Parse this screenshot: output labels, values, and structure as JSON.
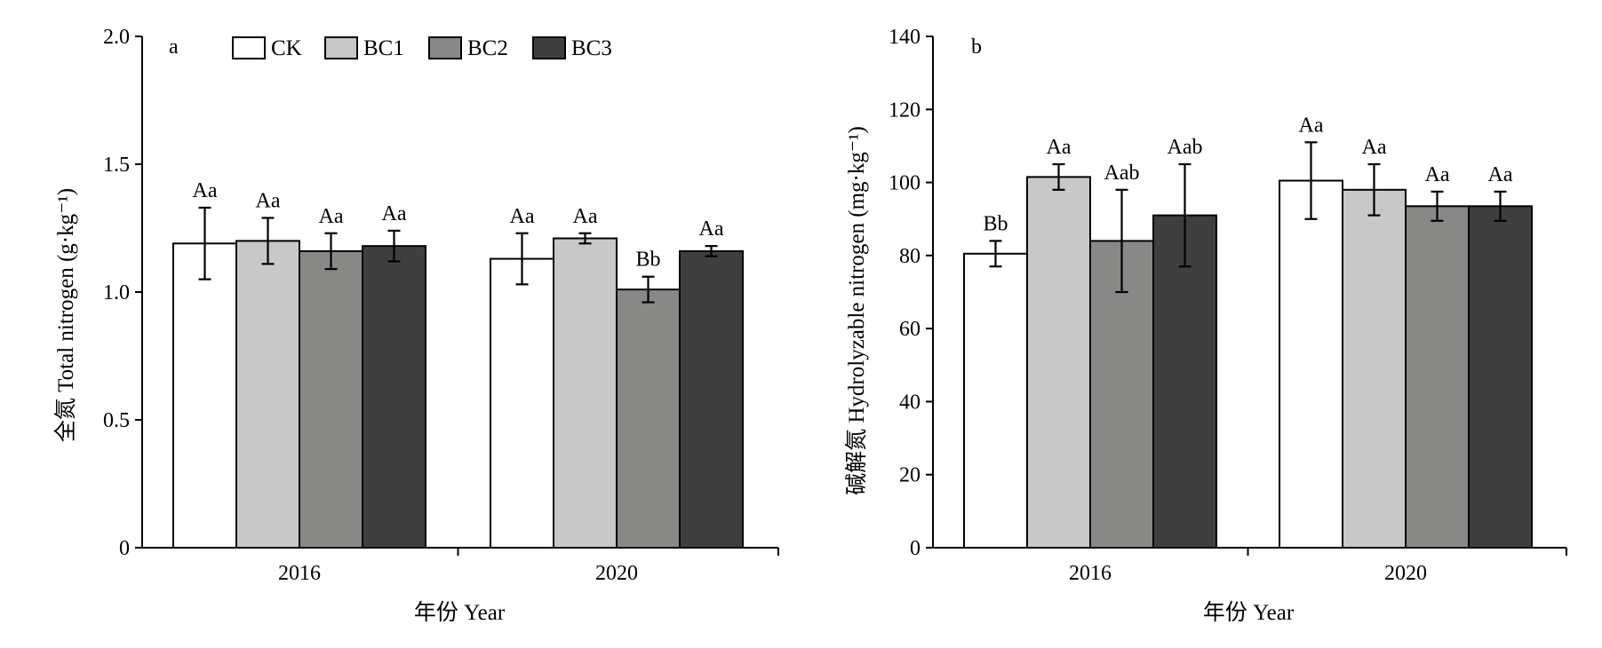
{
  "legend": [
    "CK",
    "BC1",
    "BC2",
    "BC3"
  ],
  "colors": {
    "CK": "#ffffff",
    "BC1": "#c8c8c8",
    "BC2": "#888886",
    "BC3": "#3f3f3f"
  },
  "chart_data": [
    {
      "type": "bar",
      "panel": "a",
      "categories": [
        "2016",
        "2020"
      ],
      "xlabel": "年份 Year",
      "ylabel": "全氮 Total nitrogen (g·kg⁻¹)",
      "ylim": [
        0,
        2.0
      ],
      "yticks": [
        "0",
        "0.5",
        "1.0",
        "1.5",
        "2.0"
      ],
      "ytick_values": [
        0,
        0.5,
        1.0,
        1.5,
        2.0
      ],
      "series": [
        {
          "name": "CK",
          "values": [
            1.19,
            1.13
          ],
          "errors": [
            0.14,
            0.1
          ],
          "labels": [
            "Aa",
            "Aa"
          ]
        },
        {
          "name": "BC1",
          "values": [
            1.2,
            1.21
          ],
          "errors": [
            0.09,
            0.02
          ],
          "labels": [
            "Aa",
            "Aa"
          ]
        },
        {
          "name": "BC2",
          "values": [
            1.16,
            1.01
          ],
          "errors": [
            0.07,
            0.05
          ],
          "labels": [
            "Aa",
            "Bb"
          ]
        },
        {
          "name": "BC3",
          "values": [
            1.18,
            1.16
          ],
          "errors": [
            0.06,
            0.02
          ],
          "labels": [
            "Aa",
            "Aa"
          ]
        }
      ]
    },
    {
      "type": "bar",
      "panel": "b",
      "categories": [
        "2016",
        "2020"
      ],
      "xlabel": "年份 Year",
      "ylabel": "碱解氮 Hydrolyzable nitrogen (mg·kg⁻¹)",
      "ylim": [
        0,
        140
      ],
      "yticks": [
        "0",
        "20",
        "40",
        "60",
        "80",
        "100",
        "120",
        "140"
      ],
      "ytick_values": [
        0,
        20,
        40,
        60,
        80,
        100,
        120,
        140
      ],
      "series": [
        {
          "name": "CK",
          "values": [
            80.5,
            100.5
          ],
          "errors": [
            3.5,
            10.5
          ],
          "labels": [
            "Bb",
            "Aa"
          ]
        },
        {
          "name": "BC1",
          "values": [
            101.5,
            98.0
          ],
          "errors": [
            3.5,
            7.0
          ],
          "labels": [
            "Aa",
            "Aa"
          ]
        },
        {
          "name": "BC2",
          "values": [
            84.0,
            93.5
          ],
          "errors": [
            14.0,
            4.0
          ],
          "labels": [
            "Aab",
            "Aa"
          ]
        },
        {
          "name": "BC3",
          "values": [
            91.0,
            93.5
          ],
          "errors": [
            14.0,
            4.0
          ],
          "labels": [
            "Aab",
            "Aa"
          ]
        }
      ]
    }
  ]
}
